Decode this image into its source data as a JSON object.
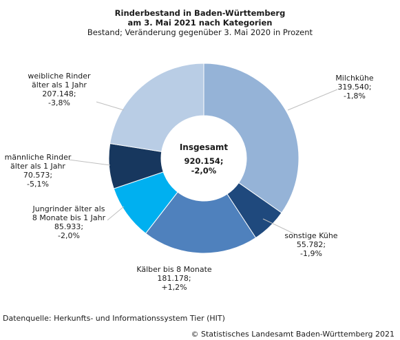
{
  "chart_data": {
    "type": "pie",
    "title_line1": "Rinderbestand in Baden-Württemberg",
    "title_line2": "am 3. Mai 2021 nach Kategorien",
    "subtitle": "Bestand; Veränderung gegenüber 3. Mai 2020 in Prozent",
    "center": {
      "label": "Insgesamt",
      "value_line1": "920.154;",
      "value_line2": "-2,0%",
      "total": 920154
    },
    "slices": [
      {
        "name": "Milchkühe",
        "value": 319540,
        "color": "#95B3D7",
        "label_lines": [
          "Milchkühe",
          "319.540;",
          "-1,8%"
        ]
      },
      {
        "name": "sonstige Kühe",
        "value": 55782,
        "color": "#1F497D",
        "label_lines": [
          "sonstige Kühe",
          "55.782;",
          "-1,9%"
        ]
      },
      {
        "name": "Kälber bis 8 Monate",
        "value": 181178,
        "color": "#4F81BD",
        "label_lines": [
          "Kälber bis 8 Monate",
          "181.178;",
          "+1,2%"
        ]
      },
      {
        "name": "Jungrinder älter als 8 Monate bis 1 Jahr",
        "value": 85933,
        "color": "#00B0F0",
        "label_lines": [
          "Jungrinder älter als",
          "8 Monate bis 1 Jahr",
          "85.933;",
          "-2,0%"
        ]
      },
      {
        "name": "männliche Rinder älter als 1 Jahr",
        "value": 70573,
        "color": "#17375E",
        "label_lines": [
          "männliche Rinder",
          "älter als 1 Jahr",
          "70.573;",
          "-5,1%"
        ]
      },
      {
        "name": "weibliche Rinder älter als 1 Jahr",
        "value": 207148,
        "color": "#B9CDE5",
        "label_lines": [
          "weibliche Rinder",
          "älter als 1 Jahr",
          "207.148;",
          "-3,8%"
        ]
      }
    ]
  },
  "footer": {
    "source": "Datenquelle: Herkunfts- und Informationssystem Tier (HIT)",
    "copyright": "© Statistisches Landesamt Baden-Württemberg 2021"
  }
}
